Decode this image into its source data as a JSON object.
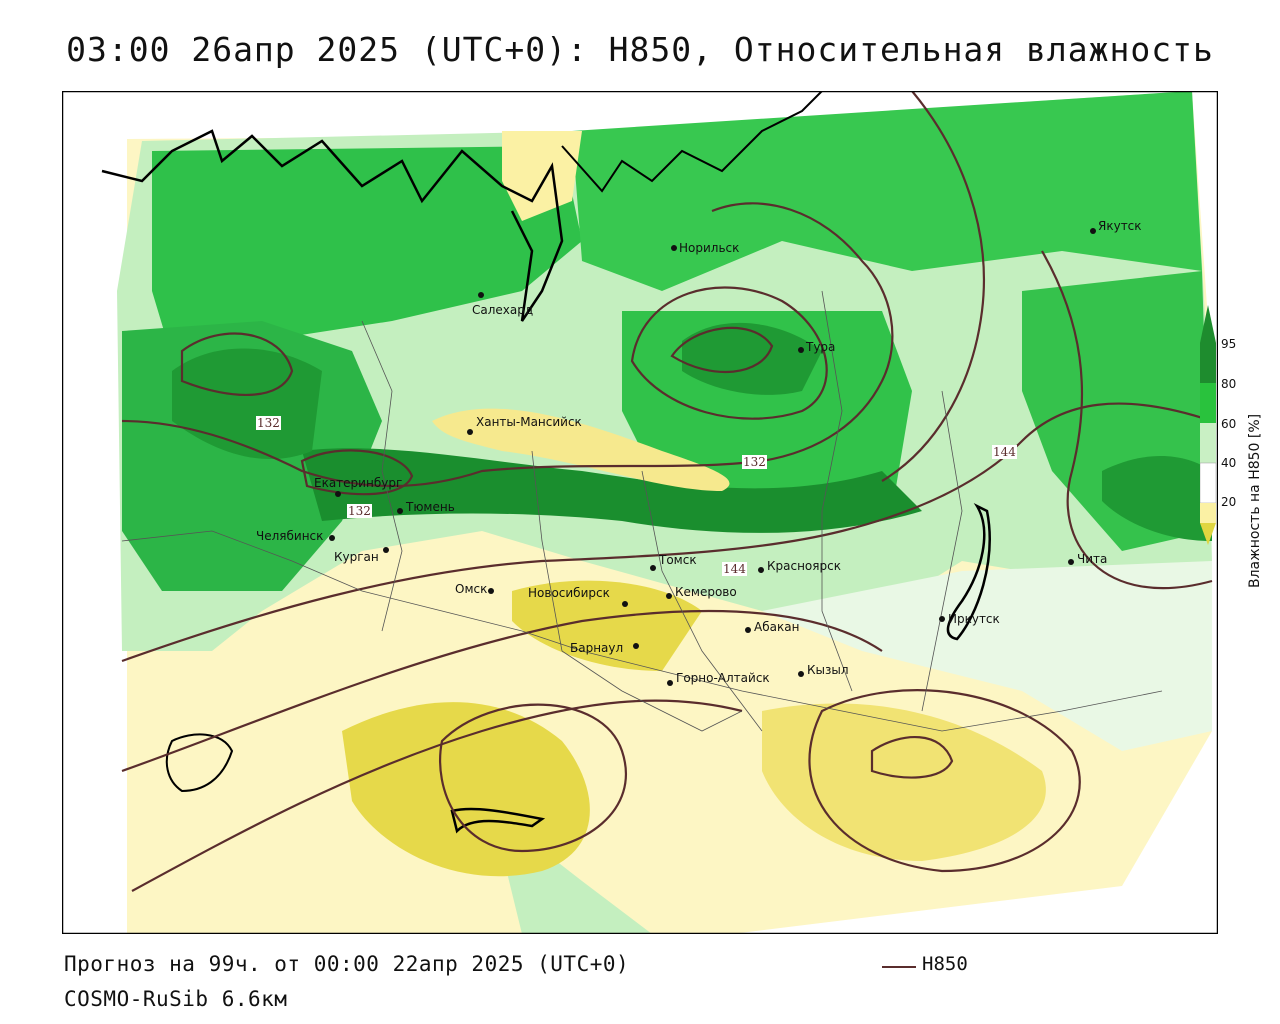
{
  "title": "03:00 26апр 2025 (UTC+0): H850, Относительная влажность",
  "footer": {
    "forecast": "Прогноз на 99ч. от 00:00 22апр 2025 (UTC+0)",
    "model": "COSMO-RuSib 6.6км",
    "legend_label": "H850"
  },
  "colorbar": {
    "title": "Влажность на H850 [%]",
    "ticks": [
      "95",
      "80",
      "60",
      "40",
      "20"
    ],
    "colors": {
      "95": "#1e8c2e",
      "80": "#29c23d",
      "60": "#c9f0c4",
      "40": "#ffffff",
      "20": "#fbf1a4",
      "low": "#e0d640"
    }
  },
  "contour_labels": [
    "132",
    "132",
    "132",
    "144",
    "144"
  ],
  "cities": {
    "norilsk": "Норильск",
    "yakutsk": "Якутск",
    "salekhard": "Салехард",
    "tura": "Тура",
    "khanty": "Ханты-Мансийск",
    "ekaterinburg": "Екатеринбург",
    "tyumen": "Тюмень",
    "chelyabinsk": "Челябинск",
    "kurgan": "Курган",
    "omsk": "Омск",
    "novosibirsk": "Новосибирск",
    "tomsk": "Томск",
    "kemerovo": "Кемерово",
    "krasnoyarsk": "Красноярск",
    "abakan": "Абакан",
    "barnaul": "Барнаул",
    "gorno": "Горно-Алтайск",
    "kyzyl": "Кызыл",
    "irkutsk": "Иркутск",
    "chita": "Чита"
  },
  "colors": {
    "contour": "#5a2d2d",
    "coast": "#000000",
    "border": "#555555"
  }
}
